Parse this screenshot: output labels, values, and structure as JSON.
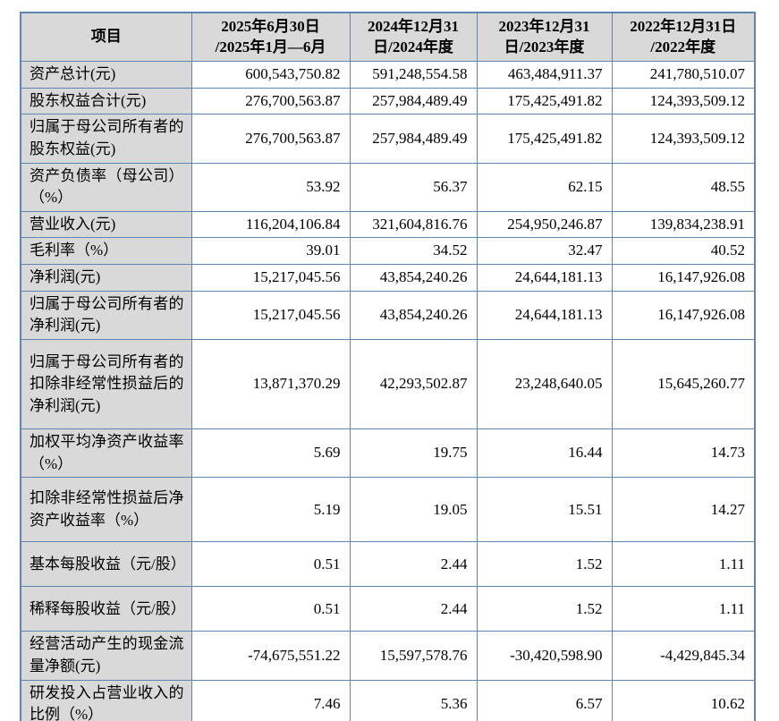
{
  "colors": {
    "border": "#5f86b0",
    "shade": "#d9d9d9",
    "text": "#000000",
    "background": "#ffffff"
  },
  "table": {
    "columns": [
      {
        "label": "项目"
      },
      {
        "label": "2025年6月30日\n/2025年1月—6月"
      },
      {
        "label": "2024年12月31\n日/2024年度"
      },
      {
        "label": "2023年12月31\n日/2023年度"
      },
      {
        "label": "2022年12月31日\n/2022年度"
      }
    ],
    "rows": [
      {
        "label": "资产总计(元)",
        "values": [
          "600,543,750.82",
          "591,248,554.58",
          "463,484,911.37",
          "241,780,510.07"
        ]
      },
      {
        "label": "股东权益合计(元)",
        "values": [
          "276,700,563.87",
          "257,984,489.49",
          "175,425,491.82",
          "124,393,509.12"
        ]
      },
      {
        "label": "归属于母公司所有者的股东权益(元)",
        "values": [
          "276,700,563.87",
          "257,984,489.49",
          "175,425,491.82",
          "124,393,509.12"
        ]
      },
      {
        "label": "资产负债率（母公司）（%）",
        "values": [
          "53.92",
          "56.37",
          "62.15",
          "48.55"
        ]
      },
      {
        "label": "营业收入(元)",
        "values": [
          "116,204,106.84",
          "321,604,816.76",
          "254,950,246.87",
          "139,834,238.91"
        ]
      },
      {
        "label": "毛利率（%）",
        "values": [
          "39.01",
          "34.52",
          "32.47",
          "40.52"
        ]
      },
      {
        "label": "净利润(元)",
        "values": [
          "15,217,045.56",
          "43,854,240.26",
          "24,644,181.13",
          "16,147,926.08"
        ]
      },
      {
        "label": "归属于母公司所有者的净利润(元)",
        "values": [
          "15,217,045.56",
          "43,854,240.26",
          "24,644,181.13",
          "16,147,926.08"
        ]
      },
      {
        "label": "归属于母公司所有者的扣除非经常性损益后的净利润(元)",
        "values": [
          "13,871,370.29",
          "42,293,502.87",
          "23,248,640.05",
          "15,645,260.77"
        ]
      },
      {
        "label": "加权平均净资产收益率（%）",
        "values": [
          "5.69",
          "19.75",
          "16.44",
          "14.73"
        ]
      },
      {
        "label": "扣除非经常性损益后净资产收益率（%）",
        "values": [
          "5.19",
          "19.05",
          "15.51",
          "14.27"
        ]
      },
      {
        "label": "基本每股收益（元/股）",
        "values": [
          "0.51",
          "2.44",
          "1.52",
          "1.11"
        ]
      },
      {
        "label": "稀释每股收益（元/股）",
        "values": [
          "0.51",
          "2.44",
          "1.52",
          "1.11"
        ]
      },
      {
        "label": "经营活动产生的现金流量净额(元)",
        "values": [
          "-74,675,551.22",
          "15,597,578.76",
          "-30,420,598.90",
          "-4,429,845.34"
        ]
      },
      {
        "label": "研发投入占营业收入的比例（%）",
        "values": [
          "7.46",
          "5.36",
          "6.57",
          "10.62"
        ]
      }
    ]
  }
}
